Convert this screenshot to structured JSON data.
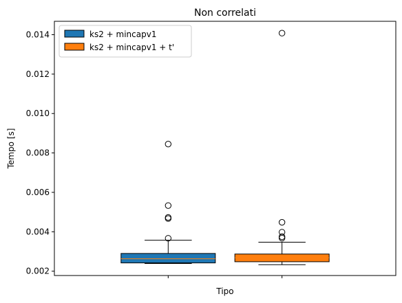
{
  "chart_data": {
    "type": "box",
    "title": "Non correlati",
    "xlabel": "Tipo",
    "ylabel": "Tempo [s]",
    "ylim": [
      0.00178,
      0.01468
    ],
    "yticks": [
      0.002,
      0.004,
      0.006,
      0.008,
      0.01,
      0.012,
      0.014
    ],
    "ytick_labels": [
      "0.002",
      "0.004",
      "0.006",
      "0.008",
      "0.010",
      "0.012",
      "0.014"
    ],
    "legend_position": "top-left",
    "grid": false,
    "series": [
      {
        "name": "ks2 + mincapv1",
        "color": "#1f77b4",
        "whisker_low": 0.00239,
        "q1": 0.00242,
        "median": 0.00263,
        "q3": 0.0029,
        "whisker_high": 0.00357,
        "outliers": [
          0.00367,
          0.00467,
          0.00473,
          0.00533,
          0.00845
        ]
      },
      {
        "name": "ks2 + mincapv1 + t'",
        "color": "#ff7f0e",
        "whisker_low": 0.00233,
        "q1": 0.00248,
        "median": 0.00268,
        "q3": 0.00287,
        "whisker_high": 0.00347,
        "outliers": [
          0.00368,
          0.00375,
          0.00398,
          0.00448,
          0.01408
        ]
      }
    ]
  }
}
